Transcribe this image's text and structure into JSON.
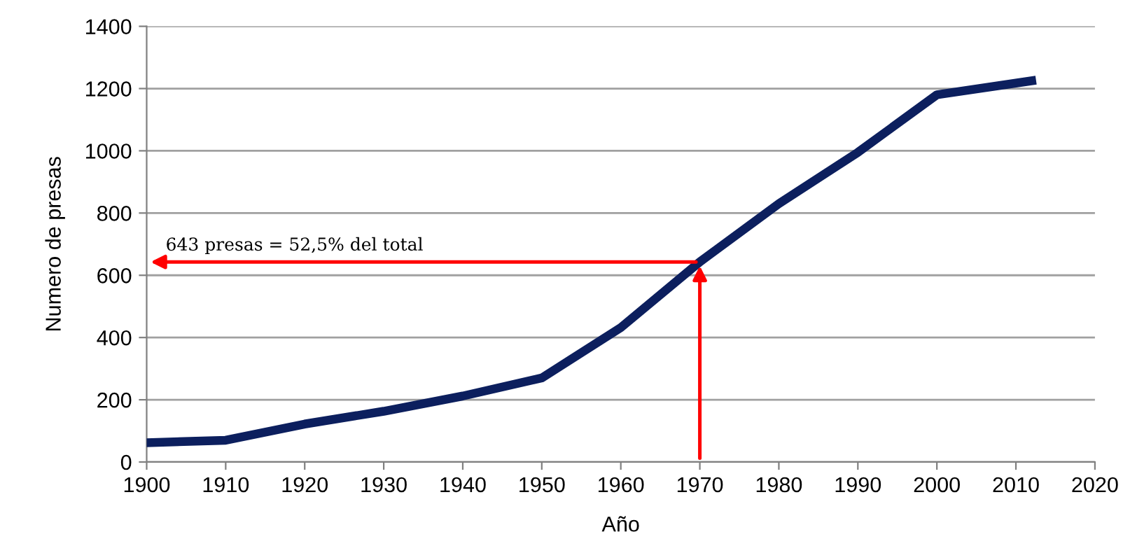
{
  "chart_data": {
    "type": "line",
    "xlabel": "Año",
    "ylabel": "Numero de presas",
    "x": [
      1900,
      1910,
      1920,
      1930,
      1940,
      1950,
      1960,
      1970,
      1980,
      1990,
      2000,
      2012
    ],
    "series": [
      {
        "color": "#0c1f5e",
        "values": [
          62,
          70,
          122,
          163,
          212,
          270,
          432,
          643,
          830,
          995,
          1180,
          1225
        ]
      }
    ],
    "xlim": [
      1900,
      2020
    ],
    "xticks": [
      1900,
      1910,
      1920,
      1930,
      1940,
      1950,
      1960,
      1970,
      1980,
      1990,
      2000,
      2010,
      2020
    ],
    "ylim": [
      0,
      1400
    ],
    "yticks": [
      0,
      200,
      400,
      600,
      800,
      1000,
      1200,
      1400
    ],
    "grid": "y",
    "legend": false,
    "marker": "none",
    "line_style": "solid",
    "annotations": [
      {
        "text": "643 presas = 52,5% del total",
        "x": 1970,
        "y": 643
      }
    ]
  }
}
